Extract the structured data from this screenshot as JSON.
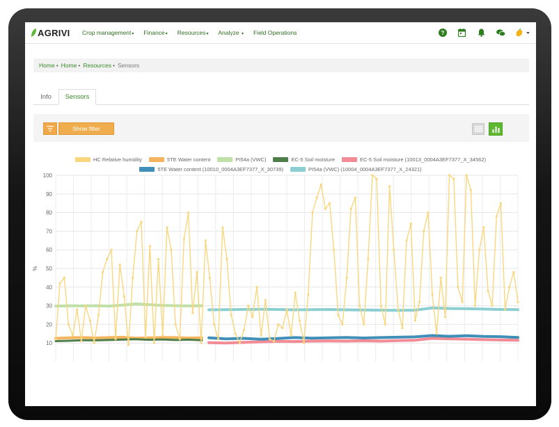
{
  "nav": {
    "logo": "AGRIVI",
    "menu": [
      {
        "label": "Crop management",
        "caret": "▾"
      },
      {
        "label": "Finance",
        "caret": "▾"
      },
      {
        "label": "Resources",
        "caret": "▾"
      },
      {
        "label": "Analyze",
        "caret": "▾"
      },
      {
        "label": "Field Operations",
        "caret": ""
      }
    ],
    "icons": [
      "help-icon",
      "calendar-icon",
      "bell-icon",
      "chat-icon",
      "user-avatar-icon"
    ]
  },
  "breadcrumb": {
    "items": [
      "Home",
      "Home",
      "Resources"
    ],
    "current": "Sensors",
    "separator": "•"
  },
  "tabs": {
    "info": "Info",
    "sensors": "Sensors"
  },
  "filter": {
    "button_label": "Show filter"
  },
  "colors": {
    "brand_green": "#3b8a2a",
    "accent_orange": "#f0ad4e",
    "active_view": "#5db830"
  },
  "chart_data": {
    "type": "line",
    "ylabel": "%",
    "ylim": [
      0,
      100
    ],
    "yticks": [
      10,
      20,
      30,
      40,
      50,
      60,
      70,
      80,
      90,
      100
    ],
    "grid": true,
    "legend_position": "top",
    "series": [
      {
        "name": "HC Relative humidity",
        "color": "#f9d77e",
        "values": [
          12,
          42,
          45,
          20,
          14,
          28,
          11,
          30,
          22,
          10,
          25,
          48,
          55,
          60,
          12,
          52,
          35,
          9,
          45,
          70,
          75,
          13,
          62,
          10,
          55,
          14,
          72,
          60,
          20,
          12,
          66,
          80,
          26,
          48,
          10,
          65,
          45,
          20,
          12,
          72,
          55,
          25,
          15,
          10,
          17,
          30,
          24,
          40,
          14,
          33,
          12,
          11,
          20,
          18,
          28,
          14,
          37,
          22,
          10,
          36,
          80,
          88,
          95,
          82,
          85,
          60,
          25,
          20,
          45,
          82,
          88,
          30,
          20,
          55,
          100,
          98,
          30,
          20,
          94,
          60,
          28,
          18,
          65,
          74,
          22,
          32,
          70,
          80,
          36,
          15,
          45,
          24,
          100,
          98,
          40,
          32,
          100,
          92,
          30,
          60,
          72,
          38,
          30,
          78,
          85,
          28,
          40,
          48,
          32
        ]
      },
      {
        "name": "5TE Water content",
        "color": "#f5b55e",
        "values": [
          12.5,
          12.8,
          13.0,
          12.7,
          12.9,
          13.1,
          12.6,
          12.8,
          13.0,
          12.9,
          12.7,
          12.8
        ]
      },
      {
        "name": "PI54a (VWC)",
        "color": "#bfe0a6",
        "values": [
          29.8,
          30.0,
          29.9,
          30.0,
          29.8,
          30.3,
          31.0,
          30.6,
          30.2,
          30.0,
          29.9,
          30.0
        ]
      },
      {
        "name": "EC-5 Soil moisture",
        "color": "#4e7f4a",
        "values": [
          11.0,
          11.2,
          11.5,
          11.4,
          11.6,
          11.8,
          12.0,
          11.7,
          11.9,
          11.6,
          11.8,
          11.5
        ]
      },
      {
        "name": "EC-5 Soil moisture (10013_0004A3EF7377_X_34562)",
        "color": "#f28b96",
        "values": [
          10.2,
          10.0,
          10.3,
          10.6,
          10.9,
          10.8,
          11.0,
          11.1,
          11.0,
          11.2,
          11.0,
          11.3,
          11.5,
          12.5,
          12.2,
          12.0,
          11.8,
          11.6,
          11.5
        ]
      },
      {
        "name": "5TE Water content (10010_0004A3EF7377_X_30739)",
        "color": "#3f8fb8",
        "values": [
          12.8,
          12.2,
          12.5,
          12.0,
          12.4,
          12.9,
          12.6,
          12.8,
          13.0,
          12.7,
          12.9,
          13.1,
          13.3,
          14.0,
          13.6,
          13.9,
          13.5,
          13.4,
          13.0
        ]
      },
      {
        "name": "PI54a (VWC) (10004_0004A3EF7377_X_24321)",
        "color": "#8ccfd3",
        "values": [
          27.8,
          27.9,
          28.0,
          28.1,
          28.0,
          27.8,
          27.9,
          28.0,
          27.8,
          27.7,
          27.6,
          27.5,
          27.6,
          28.8,
          28.5,
          28.4,
          28.2,
          28.0,
          27.9
        ]
      }
    ]
  }
}
